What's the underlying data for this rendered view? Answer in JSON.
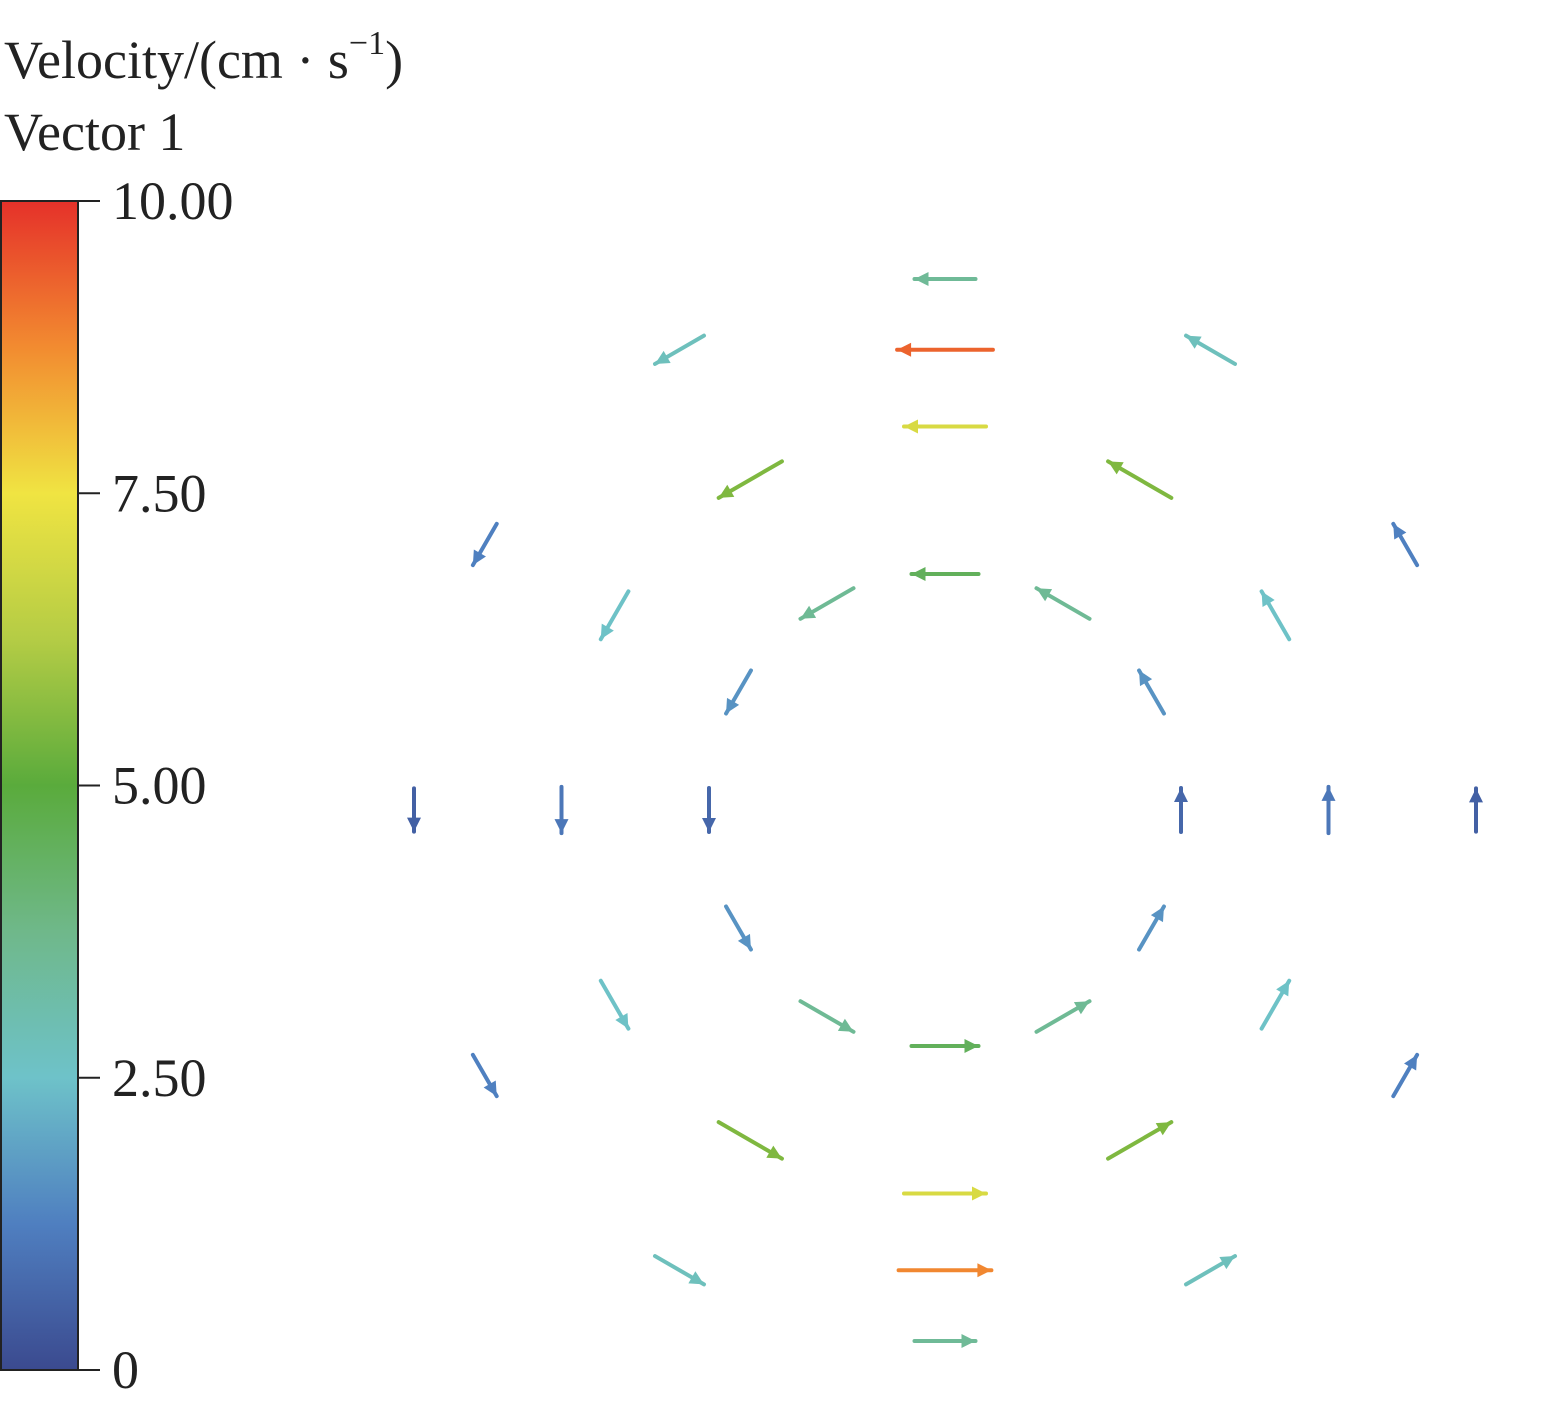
{
  "chart_data": {
    "type": "quiver",
    "title": {
      "main": "Velocity/(cm · s",
      "sup": "−1",
      "end": ")"
    },
    "subtitle": "Vector 1",
    "colorbar": {
      "lim": [
        0,
        10
      ],
      "ticks": [
        0,
        {
          "value": 2.5,
          "label": "2.50"
        },
        {
          "value": 5,
          "label": "5.00"
        },
        {
          "value": 7.5,
          "label": "7.50"
        },
        {
          "value": 10,
          "label": "10.00"
        }
      ],
      "colormap": [
        "#3b4a8f",
        "#4f7fc0",
        "#6ec2c9",
        "#6fb88a",
        "#5aab3c",
        "#b4cc45",
        "#f0e442",
        "#f28b30",
        "#e5312a"
      ]
    },
    "xlim": [
      -1,
      1
    ],
    "ylim": [
      -1,
      1
    ],
    "x": [
      0.4,
      0.35,
      0.2,
      0,
      -0.2,
      -0.35,
      -0.4,
      -0.35,
      -0.2,
      0,
      0.2,
      0.35,
      0.65,
      0.56,
      0.33,
      0,
      -0.33,
      -0.56,
      -0.65,
      -0.56,
      -0.33,
      0,
      0.33,
      0.56,
      0.9,
      0.78,
      0.45,
      0,
      -0.45,
      -0.78,
      -0.9,
      -0.78,
      -0.45,
      0,
      0.45,
      0.78,
      0,
      0
    ],
    "y": [
      0,
      0.2,
      0.35,
      0.4,
      0.35,
      0.2,
      0,
      -0.2,
      -0.35,
      -0.4,
      -0.35,
      -0.2,
      0,
      0.33,
      0.56,
      0.65,
      0.56,
      0.33,
      0,
      -0.33,
      -0.56,
      -0.65,
      -0.56,
      -0.33,
      0,
      0.45,
      0.78,
      0.9,
      0.78,
      0.45,
      0,
      -0.45,
      -0.78,
      -0.9,
      -0.78,
      -0.45,
      0.78,
      -0.78
    ],
    "angle": [
      90,
      120,
      150,
      180,
      210,
      240,
      270,
      300,
      330,
      0,
      30,
      60,
      90,
      120,
      150,
      180,
      210,
      240,
      270,
      300,
      330,
      0,
      30,
      60,
      90,
      120,
      150,
      180,
      210,
      240,
      270,
      300,
      330,
      0,
      30,
      60,
      180,
      0
    ],
    "speed": [
      0.68,
      1.63,
      3.54,
      4.5,
      3.54,
      1.63,
      0.68,
      1.63,
      3.54,
      4.5,
      3.54,
      1.63,
      1.05,
      2.54,
      5.51,
      7,
      5.51,
      2.54,
      1.05,
      2.54,
      5.51,
      7,
      5.51,
      2.54,
      0.53,
      1.27,
      2.76,
      3.5,
      2.76,
      1.27,
      0.53,
      1.27,
      2.76,
      3.5,
      2.76,
      1.27,
      9.3,
      8.8
    ]
  }
}
